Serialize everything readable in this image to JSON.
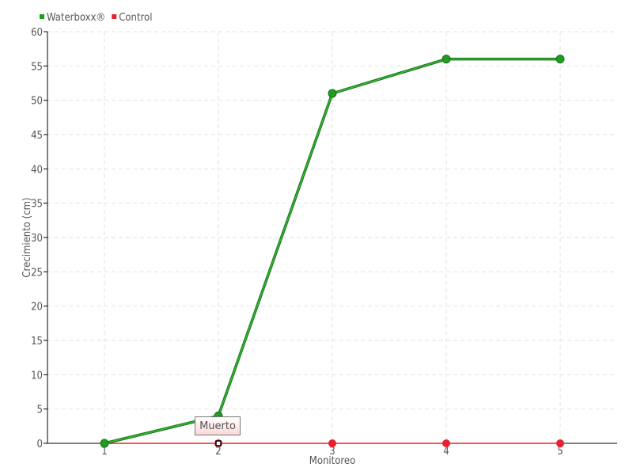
{
  "chart_data": {
    "type": "line",
    "title": "",
    "xlabel": "Monitoreo",
    "ylabel": "Crecimiento (cm)",
    "categories": [
      "1",
      "2",
      "3",
      "4",
      "5"
    ],
    "ylim": [
      0,
      60
    ],
    "yticks": [
      0,
      5,
      10,
      15,
      20,
      25,
      30,
      35,
      40,
      45,
      50,
      55,
      60
    ],
    "grid": true,
    "legend": "top-left",
    "series": [
      {
        "name": "Waterboxx®",
        "color": "#1e9e1e",
        "values": [
          0,
          4,
          51,
          56,
          56
        ]
      },
      {
        "name": "Control",
        "color": "#e8202c",
        "values": [
          0,
          0,
          0,
          0,
          0
        ]
      }
    ],
    "tooltip": {
      "text": "Muerto",
      "series": "Control",
      "category": "2"
    }
  }
}
